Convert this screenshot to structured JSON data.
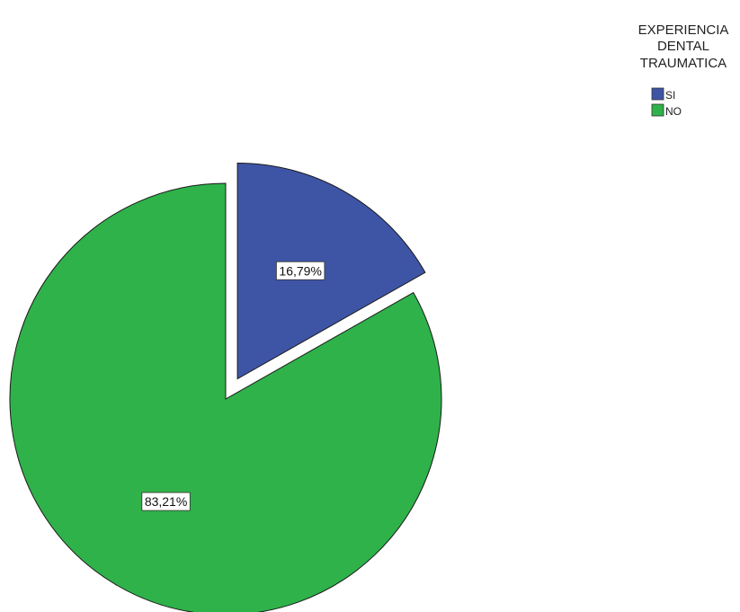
{
  "chart_data": {
    "type": "pie",
    "legend_title": [
      "EXPERIENCIA",
      "DENTAL",
      "TRAUMATICA"
    ],
    "legend_placement": "top-right",
    "slices": [
      {
        "label": "SI",
        "value": 16.79,
        "value_label": "16,79%",
        "color": "#3e55a6",
        "exploded": true
      },
      {
        "label": "NO",
        "value": 83.21,
        "value_label": "83,21%",
        "color": "#2fb24a",
        "exploded": false
      }
    ]
  }
}
